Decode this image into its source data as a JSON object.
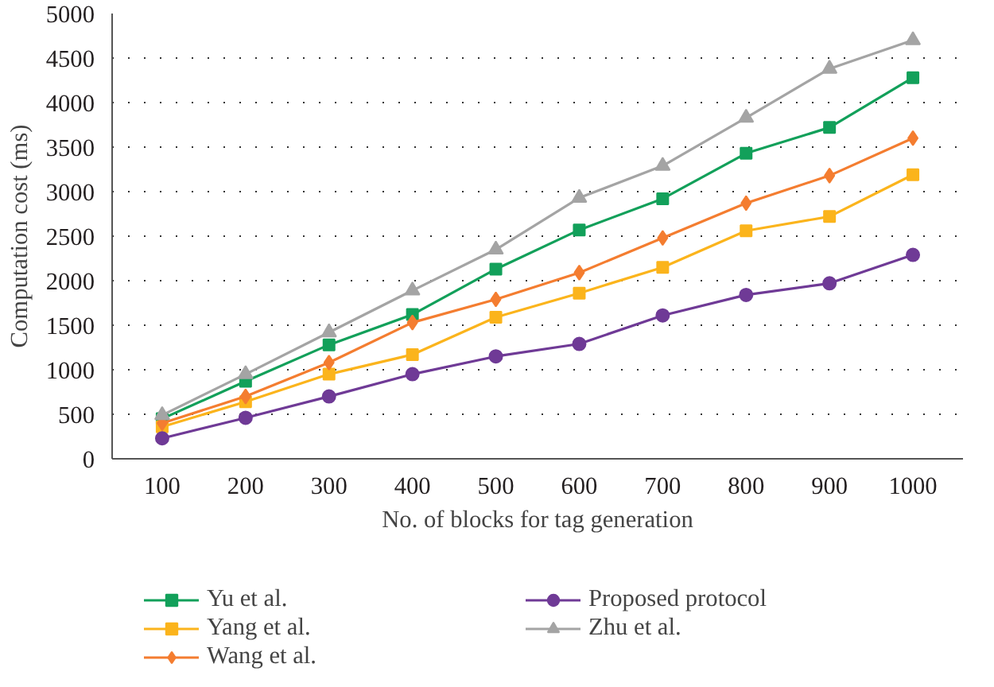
{
  "chart_data": {
    "type": "line",
    "xlabel": "No. of blocks for tag generation",
    "ylabel": "Computation cost (ms)",
    "categories": [
      "100",
      "200",
      "300",
      "400",
      "500",
      "600",
      "700",
      "800",
      "900",
      "1000"
    ],
    "ylim": [
      0,
      5000
    ],
    "yticks": [
      0,
      500,
      1000,
      1500,
      2000,
      2500,
      3000,
      3500,
      4000,
      4500,
      5000
    ],
    "grid": "y",
    "legend": "bottom",
    "series": [
      {
        "name": "Yu et al.",
        "color": "#12a05a",
        "marker": "square",
        "values": [
          450,
          870,
          1280,
          1620,
          2130,
          2570,
          2920,
          3430,
          3720,
          4280
        ]
      },
      {
        "name": "Yang et al.",
        "color": "#fbb41c",
        "marker": "square",
        "values": [
          360,
          640,
          950,
          1170,
          1590,
          1860,
          2150,
          2560,
          2720,
          3190
        ]
      },
      {
        "name": "Wang et al.",
        "color": "#f47d30",
        "marker": "diamond",
        "values": [
          400,
          700,
          1080,
          1530,
          1790,
          2090,
          2480,
          2870,
          3180,
          3600
        ]
      },
      {
        "name": "Proposed protocol",
        "color": "#6f3a96",
        "marker": "circle",
        "values": [
          230,
          460,
          700,
          950,
          1150,
          1290,
          1610,
          1840,
          1970,
          2290
        ]
      },
      {
        "name": "Zhu et al.",
        "color": "#a4a4a4",
        "marker": "triangle",
        "values": [
          490,
          950,
          1420,
          1890,
          2350,
          2930,
          3290,
          3830,
          4380,
          4700
        ]
      }
    ]
  }
}
